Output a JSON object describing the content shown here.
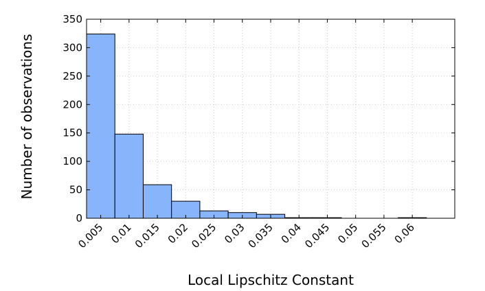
{
  "chart_data": {
    "type": "bar",
    "xlabel": "Local Lipschitz Constant",
    "ylabel": "Number of observations",
    "ylim": [
      0,
      350
    ],
    "yticks": [
      0,
      50,
      100,
      150,
      200,
      250,
      300,
      350
    ],
    "xlim": [
      0.0025,
      0.0675
    ],
    "xticks": [
      0.005,
      0.01,
      0.015,
      0.02,
      0.025,
      0.03,
      0.035,
      0.04,
      0.045,
      0.05,
      0.055,
      0.06
    ],
    "xtick_labels": [
      "0.005",
      "0.01",
      "0.015",
      "0.02",
      "0.025",
      "0.03",
      "0.035",
      "0.04",
      "0.045",
      "0.05",
      "0.055",
      "0.06"
    ],
    "bins": [
      {
        "x_start": 0.0025,
        "x_end": 0.0075,
        "value": 324
      },
      {
        "x_start": 0.0075,
        "x_end": 0.0125,
        "value": 148
      },
      {
        "x_start": 0.0125,
        "x_end": 0.0175,
        "value": 59
      },
      {
        "x_start": 0.0175,
        "x_end": 0.0225,
        "value": 30
      },
      {
        "x_start": 0.0225,
        "x_end": 0.0275,
        "value": 13
      },
      {
        "x_start": 0.0275,
        "x_end": 0.0325,
        "value": 10
      },
      {
        "x_start": 0.0325,
        "x_end": 0.0375,
        "value": 7
      },
      {
        "x_start": 0.0375,
        "x_end": 0.0425,
        "value": 1
      },
      {
        "x_start": 0.0425,
        "x_end": 0.0475,
        "value": 1
      },
      {
        "x_start": 0.0475,
        "x_end": 0.0525,
        "value": 0
      },
      {
        "x_start": 0.0525,
        "x_end": 0.0575,
        "value": 0
      },
      {
        "x_start": 0.0575,
        "x_end": 0.0625,
        "value": 1
      }
    ],
    "bar_color": "#88b4fc",
    "bar_edge_color": "#000000",
    "grid": true,
    "legend": "none"
  }
}
